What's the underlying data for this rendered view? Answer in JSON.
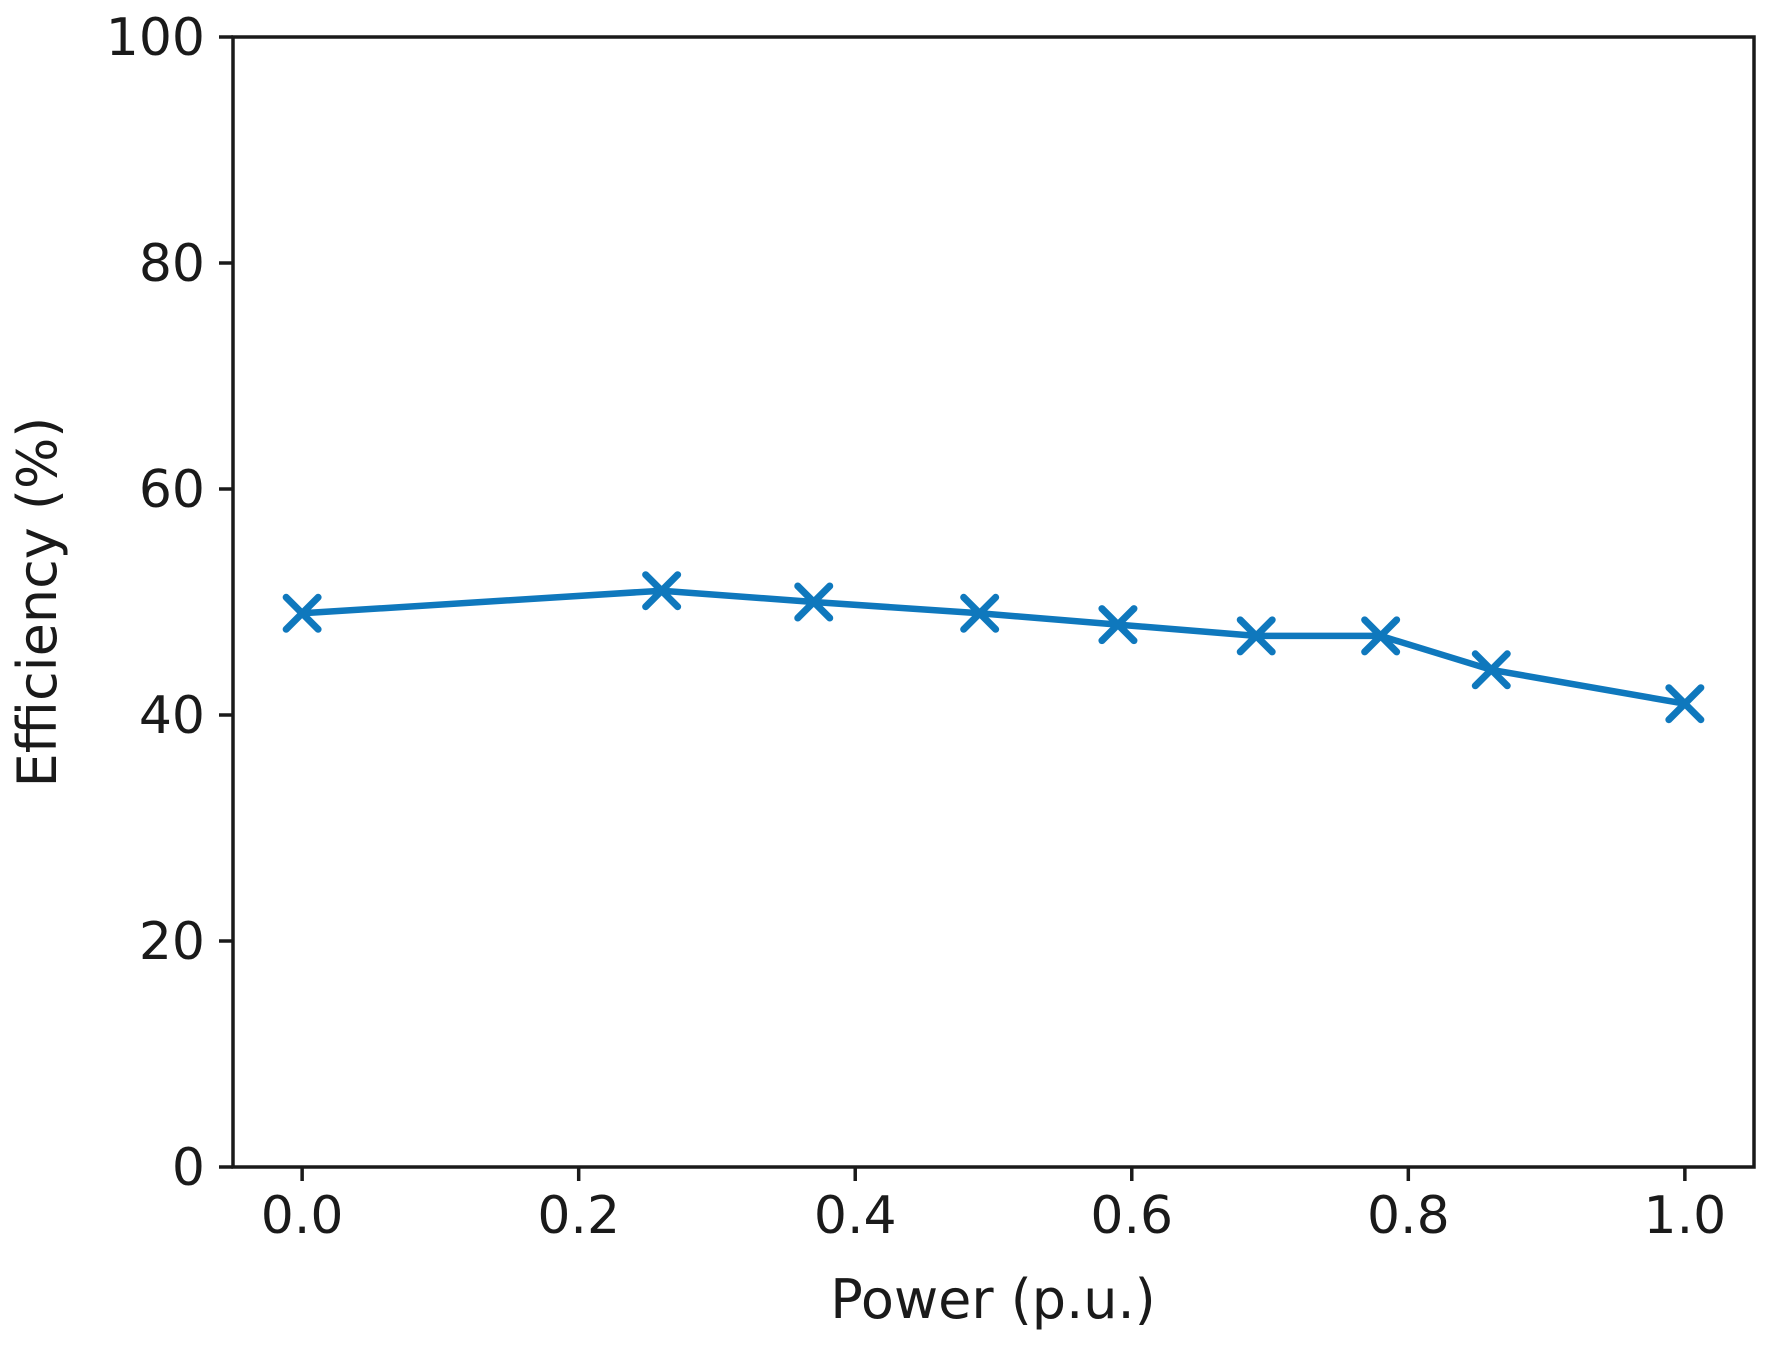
{
  "chart_data": {
    "type": "line",
    "title": "",
    "xlabel": "Power (p.u.)",
    "ylabel": "Efficiency (%)",
    "x": [
      0.0,
      0.26,
      0.37,
      0.49,
      0.59,
      0.69,
      0.78,
      0.86,
      1.0
    ],
    "y": [
      49,
      51,
      50,
      49,
      48,
      47,
      47,
      44,
      41
    ],
    "xlim": [
      -0.05,
      1.05
    ],
    "ylim": [
      0,
      100
    ],
    "xticks": [
      0.0,
      0.2,
      0.4,
      0.6,
      0.8,
      1.0
    ],
    "xtick_labels": [
      "0.0",
      "0.2",
      "0.4",
      "0.6",
      "0.8",
      "1.0"
    ],
    "yticks": [
      0,
      20,
      40,
      60,
      80,
      100
    ],
    "ytick_labels": [
      "0",
      "20",
      "40",
      "60",
      "80",
      "100"
    ],
    "marker": "x",
    "line_color": "#0f78bd",
    "axis_color": "#1a1a1a",
    "background_color": "#ffffff",
    "grid": false,
    "legend": null
  }
}
